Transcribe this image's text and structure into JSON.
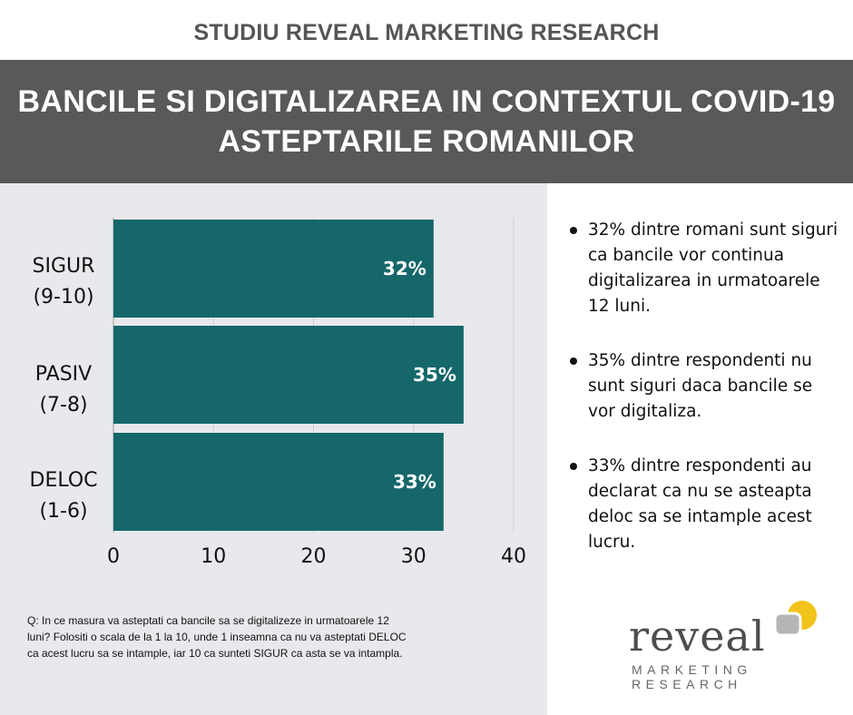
{
  "header": {
    "top_title": "STUDIU REVEAL MARKETING RESEARCH",
    "banner_line1": "BANCILE SI DIGITALIZAREA IN CONTEXTUL COVID-19",
    "banner_line2": "ASTEPTARILE ROMANILOR"
  },
  "chart_data": {
    "type": "bar",
    "orientation": "horizontal",
    "categories": [
      {
        "line1": "SIGUR",
        "line2": "(9-10)"
      },
      {
        "line1": "PASIV",
        "line2": "(7-8)"
      },
      {
        "line1": "DELOC",
        "line2": "(1-6)"
      }
    ],
    "values": [
      32,
      35,
      33
    ],
    "data_labels": [
      "32%",
      "35%",
      "33%"
    ],
    "x_ticks": [
      "0",
      "10",
      "20",
      "30",
      "40"
    ],
    "xlim": [
      0,
      40
    ],
    "grid": true,
    "bar_color": "#15676a"
  },
  "bullets": [
    "32% dintre romani sunt siguri ca bancile vor continua digitalizarea in urmatoarele 12 luni.",
    "35% dintre respondenti nu sunt siguri daca bancile se vor digitaliza.",
    "33% dintre respondenti au declarat ca nu se asteapta deloc sa se intample acest lucru."
  ],
  "question": "Q: In ce masura va asteptati ca bancile sa se digitalizeze in urmatoarele 12 luni?  Folositi o scala de la 1 la 10, unde 1 inseamna ca nu va asteptati DELOC ca acest lucru sa se intample, iar 10 ca sunteti SIGUR ca asta se va intampla.",
  "logo": {
    "word": "reveal",
    "sub_line1": "MARKETING",
    "sub_line2": "RESEARCH",
    "colors": {
      "yellow": "#f2c31b",
      "gray": "#b5b5b5",
      "text": "#4d4d4d"
    }
  }
}
